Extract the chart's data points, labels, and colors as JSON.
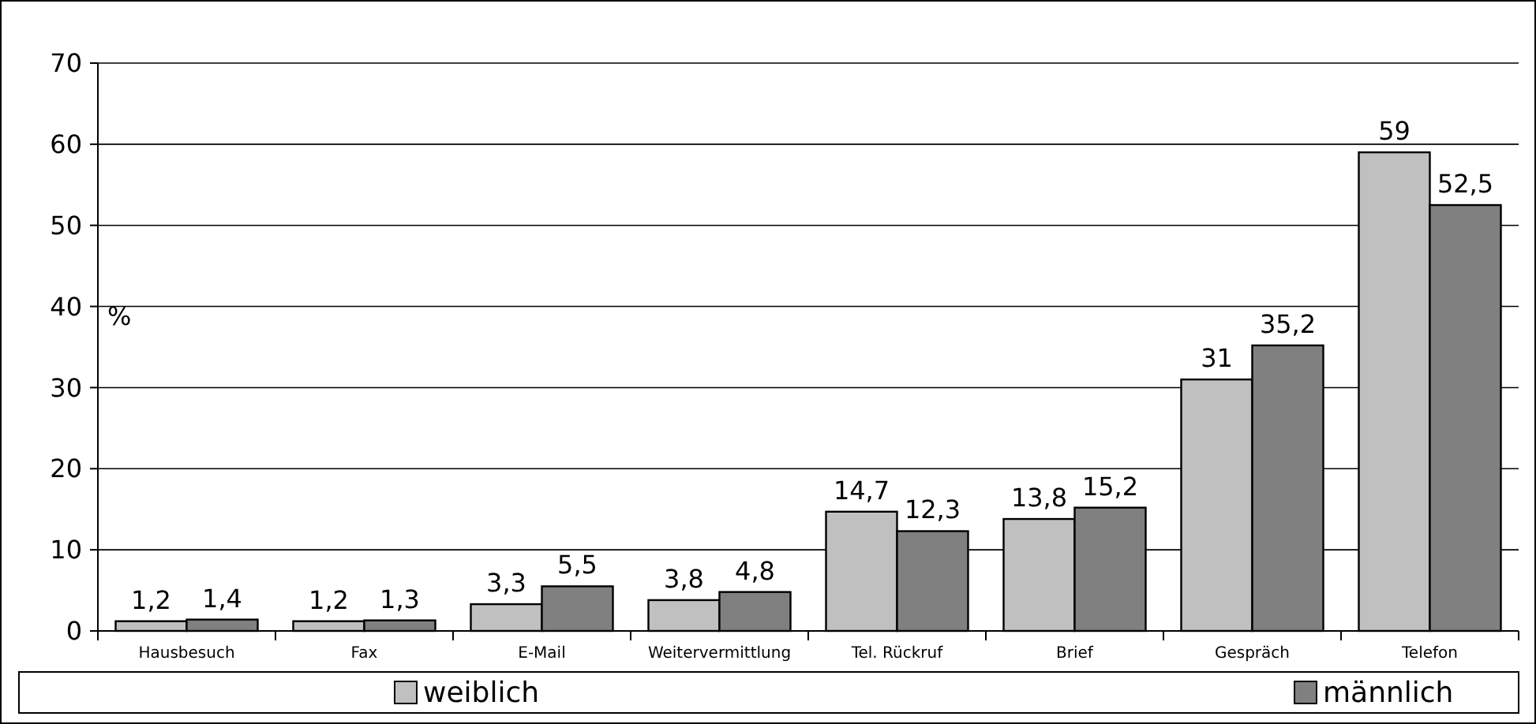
{
  "chart_data": {
    "type": "bar",
    "ylabel": "%",
    "categories": [
      "Hausbesuch",
      "Fax",
      "E-Mail",
      "Weitervermittlung",
      "Tel. Rückruf",
      "Brief",
      "Gespräch",
      "Telefon"
    ],
    "series": [
      {
        "name": "weiblich",
        "color": "#c0c0c0",
        "values": [
          1.2,
          1.2,
          3.3,
          3.8,
          14.7,
          13.8,
          31,
          59
        ],
        "value_labels": [
          "1,2",
          "1,2",
          "3,3",
          "3,8",
          "14,7",
          "13,8",
          "31",
          "59"
        ]
      },
      {
        "name": "männlich",
        "color": "#808080",
        "values": [
          1.4,
          1.3,
          5.5,
          4.8,
          12.3,
          15.2,
          35.2,
          52.5
        ],
        "value_labels": [
          "1,4",
          "1,3",
          "5,5",
          "4,8",
          "12,3",
          "15,2",
          "35,2",
          "52,5"
        ]
      }
    ],
    "ylim": [
      0,
      70
    ],
    "yticks": [
      0,
      10,
      20,
      30,
      40,
      50,
      60,
      70
    ],
    "grid": "y",
    "legend": "bottom"
  }
}
